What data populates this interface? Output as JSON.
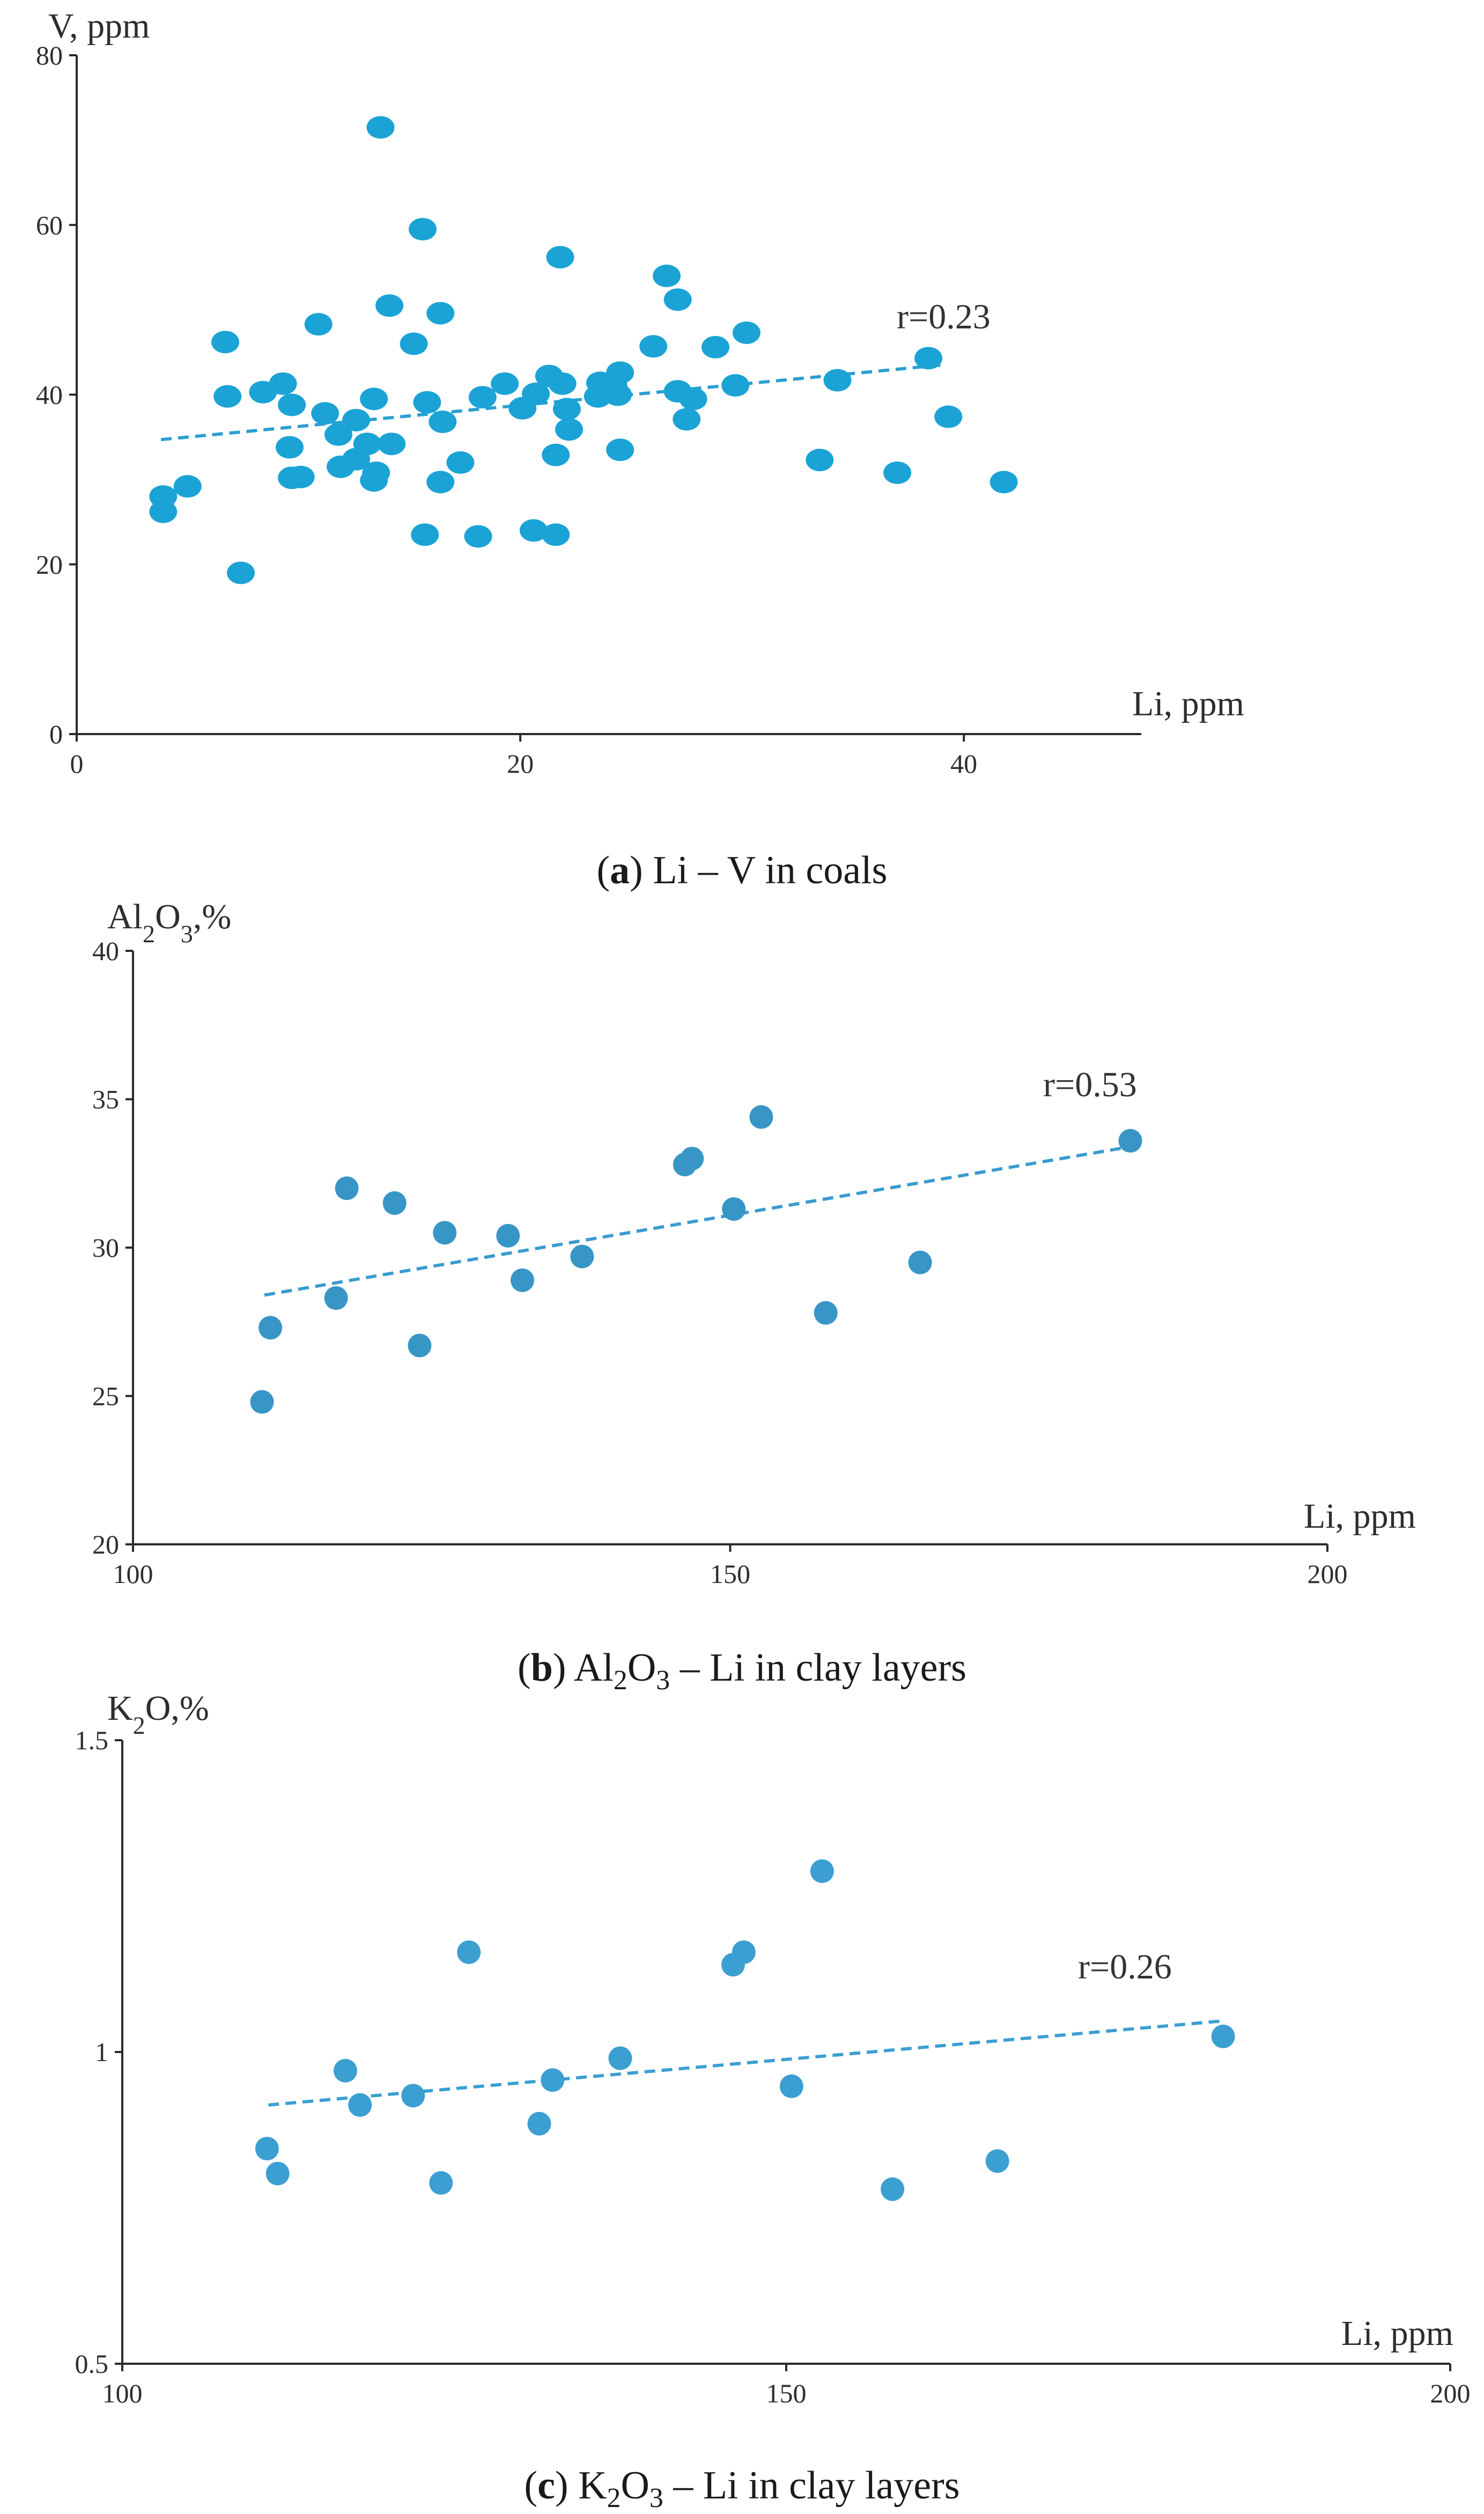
{
  "chart_data": [
    {
      "type": "scatter",
      "panel": "a",
      "title": "Li – V in coals",
      "xlabel": "Li, ppm",
      "ylabel": "V, ppm",
      "xlim": [
        0,
        48
      ],
      "ylim": [
        0,
        80
      ],
      "xticks": [
        0,
        20,
        40
      ],
      "yticks": [
        0,
        20,
        40,
        60,
        80
      ],
      "point_color": "#1ba3d6",
      "trend_color": "#2b9fd0",
      "trend": {
        "x": [
          3.8,
          39.0
        ],
        "y": [
          34.7,
          43.5
        ]
      },
      "annotation": "r=0.23",
      "points": [
        [
          13.7,
          71.5
        ],
        [
          15.6,
          59.5
        ],
        [
          21.8,
          56.2
        ],
        [
          26.6,
          54.0
        ],
        [
          27.1,
          51.2
        ],
        [
          14.1,
          50.5
        ],
        [
          16.4,
          49.6
        ],
        [
          10.9,
          48.3
        ],
        [
          30.2,
          47.3
        ],
        [
          6.7,
          46.2
        ],
        [
          15.2,
          46.0
        ],
        [
          26.0,
          45.7
        ],
        [
          28.8,
          45.6
        ],
        [
          38.4,
          44.3
        ],
        [
          21.3,
          42.2
        ],
        [
          24.5,
          42.6
        ],
        [
          9.3,
          41.3
        ],
        [
          19.3,
          41.3
        ],
        [
          21.9,
          41.3
        ],
        [
          23.6,
          41.4
        ],
        [
          29.7,
          41.1
        ],
        [
          34.3,
          41.7
        ],
        [
          24.2,
          41.0
        ],
        [
          8.4,
          40.3
        ],
        [
          27.1,
          40.4
        ],
        [
          20.7,
          40.1
        ],
        [
          6.8,
          39.8
        ],
        [
          13.4,
          39.5
        ],
        [
          18.3,
          39.7
        ],
        [
          23.5,
          39.8
        ],
        [
          24.4,
          40.0
        ],
        [
          27.8,
          39.5
        ],
        [
          9.7,
          38.8
        ],
        [
          15.8,
          39.1
        ],
        [
          20.1,
          38.4
        ],
        [
          22.1,
          38.3
        ],
        [
          11.2,
          37.8
        ],
        [
          12.6,
          37.0
        ],
        [
          16.5,
          36.8
        ],
        [
          27.5,
          37.1
        ],
        [
          39.3,
          37.4
        ],
        [
          22.2,
          35.9
        ],
        [
          11.8,
          35.3
        ],
        [
          13.1,
          34.2
        ],
        [
          14.2,
          34.2
        ],
        [
          9.6,
          33.8
        ],
        [
          24.5,
          33.5
        ],
        [
          21.6,
          32.9
        ],
        [
          12.6,
          32.4
        ],
        [
          17.3,
          32.0
        ],
        [
          33.5,
          32.3
        ],
        [
          11.9,
          31.5
        ],
        [
          13.5,
          30.8
        ],
        [
          37.0,
          30.8
        ],
        [
          9.7,
          30.2
        ],
        [
          10.1,
          30.3
        ],
        [
          13.4,
          29.9
        ],
        [
          16.4,
          29.7
        ],
        [
          41.8,
          29.7
        ],
        [
          5.0,
          29.2
        ],
        [
          3.9,
          28.0
        ],
        [
          3.9,
          26.2
        ],
        [
          20.6,
          24.0
        ],
        [
          15.7,
          23.5
        ],
        [
          18.1,
          23.3
        ],
        [
          21.6,
          23.5
        ],
        [
          7.4,
          19.0
        ]
      ]
    },
    {
      "type": "scatter",
      "panel": "b",
      "title": "Al2O3 – Li in clay layers",
      "xlabel": "Li, ppm",
      "ylabel": "Al2O3,%",
      "xlim": [
        100,
        200
      ],
      "ylim": [
        20,
        40
      ],
      "xticks": [
        100,
        150,
        200
      ],
      "yticks": [
        20,
        25,
        30,
        35,
        40
      ],
      "point_color": "#3796c6",
      "trend_color": "#3a9bd0",
      "trend": {
        "x": [
          111.0,
          183.5
        ],
        "y": [
          28.4,
          33.4
        ]
      },
      "annotation": "r=0.53",
      "points": [
        [
          110.8,
          24.8
        ],
        [
          111.5,
          27.3
        ],
        [
          117.0,
          28.3
        ],
        [
          117.9,
          32.0
        ],
        [
          121.9,
          31.5
        ],
        [
          124.0,
          26.7
        ],
        [
          126.1,
          30.5
        ],
        [
          131.4,
          30.4
        ],
        [
          132.6,
          28.9
        ],
        [
          137.6,
          29.7
        ],
        [
          146.2,
          32.8
        ],
        [
          146.8,
          33.0
        ],
        [
          150.3,
          31.3
        ],
        [
          152.6,
          34.4
        ],
        [
          158.0,
          27.8
        ],
        [
          165.9,
          29.5
        ],
        [
          183.5,
          33.6
        ]
      ]
    },
    {
      "type": "scatter",
      "panel": "c",
      "title": "K2O3 – Li in clay layers",
      "xlabel": "Li, ppm",
      "ylabel": "K2O,%",
      "xlim": [
        100,
        200
      ],
      "ylim": [
        0.5,
        1.5
      ],
      "xticks": [
        100,
        150,
        200
      ],
      "yticks": [
        0.5,
        1,
        1.5
      ],
      "ytick_labels": [
        "0.5",
        "1",
        "1.5"
      ],
      "point_color": "#3b9fd2",
      "trend_color": "#3b9fd2",
      "trend": {
        "x": [
          111.0,
          183.0
        ],
        "y": [
          0.915,
          1.05
        ]
      },
      "annotation": "r=0.26",
      "points": [
        [
          110.9,
          0.845
        ],
        [
          111.7,
          0.805
        ],
        [
          116.8,
          0.97
        ],
        [
          117.9,
          0.915
        ],
        [
          121.9,
          0.93
        ],
        [
          124.0,
          0.79
        ],
        [
          126.1,
          1.16
        ],
        [
          131.4,
          0.885
        ],
        [
          132.4,
          0.955
        ],
        [
          137.5,
          0.99
        ],
        [
          146.0,
          1.14
        ],
        [
          146.8,
          1.16
        ],
        [
          150.4,
          0.945
        ],
        [
          152.7,
          1.29
        ],
        [
          158.0,
          0.78
        ],
        [
          165.9,
          0.825
        ],
        [
          182.9,
          1.025
        ]
      ]
    }
  ],
  "captions": [
    {
      "label": "a",
      "text": " Li – V in coals"
    },
    {
      "label": "b",
      "text": " Al2O3 – Li in clay layers"
    },
    {
      "label": "c",
      "text": " K2O3 – Li in clay layers"
    }
  ]
}
